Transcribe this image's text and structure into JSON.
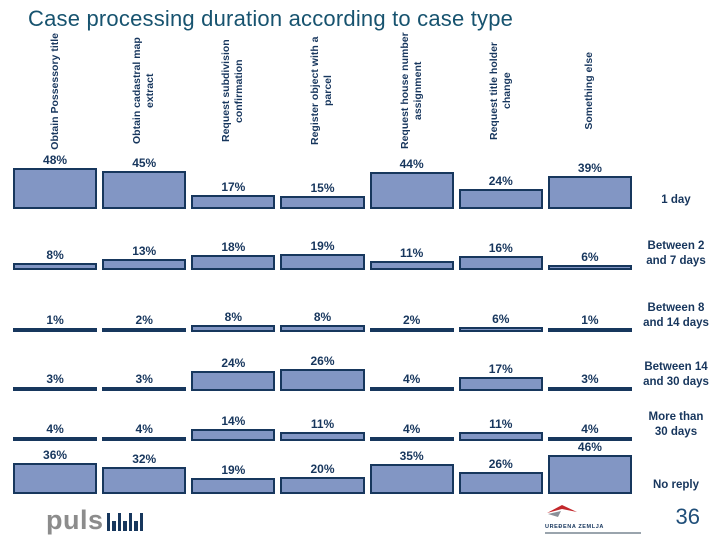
{
  "title": "Case processing duration according to case type",
  "chart_data": {
    "type": "bar",
    "title": "Case processing duration according to case type",
    "layout": "small-multiple horizontal bar rows, one row per duration bucket, one column per case type; value labels above bars; row labels on right; no axes or grid",
    "unit": "%",
    "categories": [
      "Obtain Possessory title",
      "Obtain cadastral map extract",
      "Request subdivision confirmation",
      "Register object with a parcel",
      "Request house number assignment",
      "Request title holder change",
      "Something else"
    ],
    "series": [
      {
        "name": "1 day",
        "values": [
          48,
          45,
          17,
          15,
          44,
          24,
          39
        ]
      },
      {
        "name": "Between 2 and 7 days",
        "values": [
          8,
          13,
          18,
          19,
          11,
          16,
          6
        ]
      },
      {
        "name": "Between 8 and 14 days",
        "values": [
          1,
          2,
          8,
          8,
          2,
          6,
          1
        ]
      },
      {
        "name": "Between 14 and 30 days",
        "values": [
          3,
          3,
          24,
          26,
          4,
          17,
          3
        ]
      },
      {
        "name": "More than 30 days",
        "values": [
          4,
          4,
          14,
          11,
          4,
          11,
          4
        ]
      },
      {
        "name": "No reply",
        "values": [
          36,
          32,
          19,
          20,
          35,
          26,
          46
        ]
      }
    ],
    "ylim": [
      0,
      50
    ]
  },
  "footer": {
    "brand": "puls",
    "logo_text": "UREĐENA ZEMLJA",
    "page_number": "36"
  },
  "colors": {
    "title_blue": "#17536F",
    "text_navy": "#17365D",
    "bar_fill": "#8296C4",
    "bar_border": "#17375D",
    "brand_gray": "#8C8C8C",
    "logo_red": "#C3272B",
    "logo_gray": "#8A9098"
  }
}
